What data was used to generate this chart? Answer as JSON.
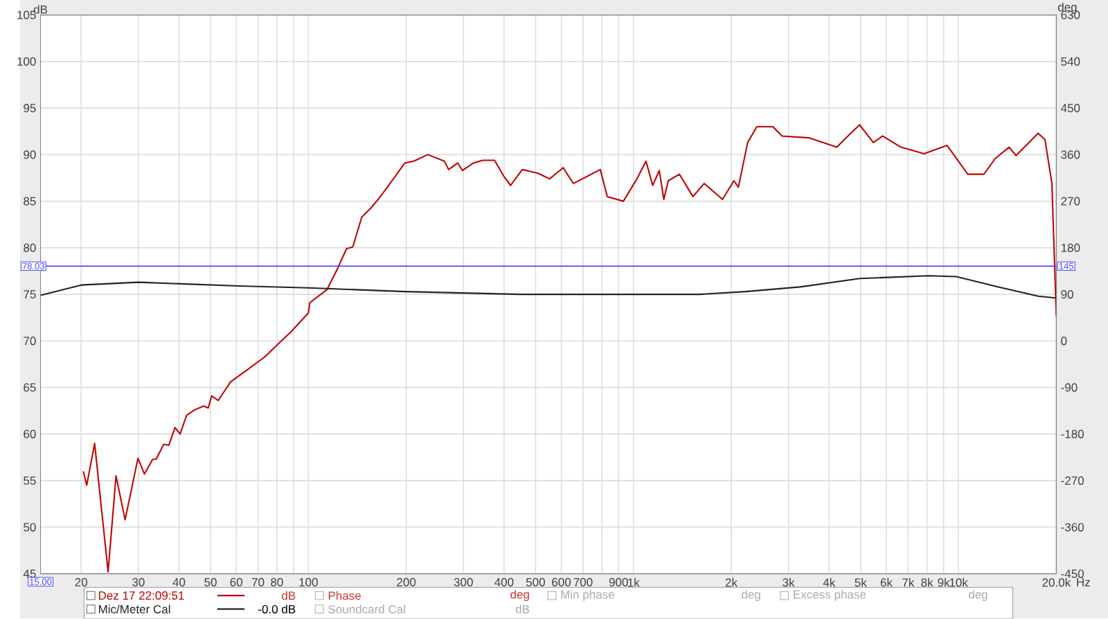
{
  "chart_data": {
    "type": "line",
    "xlabel": "Hz",
    "ylabel": "dB",
    "y2label": "deg",
    "log": "x",
    "grid": true,
    "legend": "bottom",
    "xlim": [
      15,
      20000
    ],
    "ylim": [
      45,
      105
    ],
    "y2lim": [
      -450,
      630
    ],
    "xticks": [
      20,
      30,
      40,
      50,
      60,
      70,
      80,
      {
        "value": 90,
        "label": null
      },
      100,
      200,
      300,
      400,
      500,
      600,
      700,
      {
        "value": 800,
        "label": null
      },
      900,
      {
        "value": 1000,
        "label": "1k"
      },
      {
        "value": 2000,
        "label": "2k"
      },
      {
        "value": 3000,
        "label": "3k"
      },
      {
        "value": 4000,
        "label": "4k"
      },
      {
        "value": 5000,
        "label": "5k"
      },
      {
        "value": 6000,
        "label": "6k"
      },
      {
        "value": 7000,
        "label": "7k"
      },
      {
        "value": 8000,
        "label": "8k"
      },
      {
        "value": 9000,
        "label": "9k"
      },
      {
        "value": 10000,
        "label": "10k"
      },
      {
        "value": 20000,
        "label": "20.0k"
      }
    ],
    "yticks": [
      45,
      50,
      55,
      60,
      65,
      70,
      75,
      80,
      85,
      90,
      95,
      100,
      105
    ],
    "y2ticks": [
      -450,
      -360,
      -270,
      -180,
      -90,
      0,
      90,
      180,
      270,
      360,
      450,
      540,
      630
    ],
    "series": [
      {
        "name": "Dez 17 22:09:51",
        "color": "#c00000",
        "x": [
          20.3,
          20.8,
          22.0,
          24.2,
          25.6,
          27.3,
          29.9,
          31.3,
          33.2,
          34.0,
          35.9,
          37.2,
          38.9,
          40.3,
          42.2,
          44.7,
          47.6,
          49.2,
          50.4,
          52.8,
          57.6,
          64.3,
          73.5,
          80.3,
          88.5,
          100,
          101,
          114,
          122.7,
          131,
          137,
          146,
          156,
          164,
          175,
          198,
          211,
          233,
          262,
          270,
          288,
          298,
          322,
          344,
          374,
          399,
          419,
          455,
          509,
          552,
          608,
          653,
          791,
          831,
          931,
          1025,
          1093,
          1146,
          1201,
          1240,
          1280,
          1385,
          1524,
          1651,
          1880,
          2037,
          2103,
          2246,
          2396,
          2685,
          2865,
          3479,
          4222,
          4506,
          4965,
          5470,
          5840,
          6655,
          7830,
          9220,
          10680,
          11970,
          12980,
          14310,
          15030,
          17580,
          18460,
          19380,
          20000
        ],
        "values": [
          56.0,
          54.5,
          59.0,
          45.2,
          55.5,
          50.8,
          57.4,
          55.7,
          57.3,
          57.3,
          58.9,
          58.8,
          60.7,
          60.0,
          62.0,
          62.6,
          63.0,
          62.8,
          64.1,
          63.6,
          65.6,
          66.8,
          68.3,
          69.6,
          71.0,
          73.0,
          74.1,
          75.5,
          77.7,
          79.9,
          80.1,
          83.3,
          84.3,
          85.2,
          86.5,
          89.1,
          89.3,
          90.0,
          89.3,
          88.4,
          89.1,
          88.3,
          89.1,
          89.4,
          89.4,
          87.7,
          86.7,
          88.4,
          88.0,
          87.4,
          88.6,
          86.9,
          88.4,
          85.5,
          85.0,
          87.4,
          89.3,
          86.7,
          88.3,
          85.2,
          87.2,
          87.9,
          85.5,
          86.9,
          85.2,
          87.2,
          86.5,
          91.3,
          93.0,
          93.0,
          92.0,
          91.8,
          90.8,
          91.8,
          93.2,
          91.3,
          92.0,
          90.8,
          90.1,
          91.0,
          87.9,
          87.9,
          89.6,
          90.8,
          89.9,
          92.3,
          91.6,
          86.9,
          72.6
        ]
      },
      {
        "name": "Mic/Meter Cal",
        "color": "#222222",
        "x": [
          15,
          20,
          30,
          61,
          100,
          198,
          447,
          1600,
          2210,
          3260,
          4965,
          8100,
          9850,
          13200,
          17580,
          20000
        ],
        "values": [
          74.9,
          76.0,
          76.3,
          75.9,
          75.7,
          75.3,
          75.0,
          75.0,
          75.3,
          75.8,
          76.7,
          77.0,
          76.9,
          75.8,
          74.8,
          74.6
        ]
      }
    ],
    "ref_lines": [
      {
        "axis": "y",
        "value": 78.03,
        "label": "78.03",
        "color": "#4a4aff"
      }
    ],
    "annotations": [
      "dB",
      "Phase",
      "deg",
      "Min phase",
      "deg",
      "Excess phase",
      "deg",
      "-0.0 dB",
      "Soundcard Cal",
      "dB",
      {
        "text": "145",
        "x": 20000,
        "y": 78.03
      },
      "15.00"
    ]
  }
}
